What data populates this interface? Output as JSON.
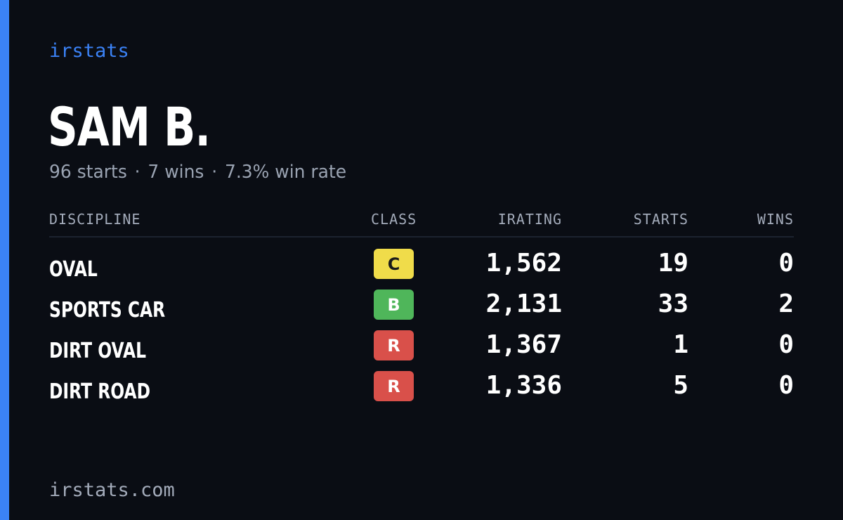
{
  "brand": "irstats",
  "player": {
    "name": "SAM B.",
    "starts_text": "96 starts",
    "wins_text": "7 wins",
    "win_rate_text": "7.3% win rate",
    "separator": "·"
  },
  "table": {
    "headers": {
      "discipline": "DISCIPLINE",
      "class": "CLASS",
      "irating": "IRATING",
      "starts": "STARTS",
      "wins": "WINS"
    },
    "rows": [
      {
        "discipline": "OVAL",
        "class": "C",
        "class_color": "#f0dc4a",
        "class_text_color": "#1a1a1a",
        "irating": "1,562",
        "starts": "19",
        "wins": "0"
      },
      {
        "discipline": "SPORTS CAR",
        "class": "B",
        "class_color": "#4fb65a",
        "class_text_color": "#ffffff",
        "irating": "2,131",
        "starts": "33",
        "wins": "2"
      },
      {
        "discipline": "DIRT OVAL",
        "class": "R",
        "class_color": "#d9504a",
        "class_text_color": "#ffffff",
        "irating": "1,367",
        "starts": "1",
        "wins": "0"
      },
      {
        "discipline": "DIRT ROAD",
        "class": "R",
        "class_color": "#d9504a",
        "class_text_color": "#ffffff",
        "irating": "1,336",
        "starts": "5",
        "wins": "0"
      }
    ]
  },
  "footer": "irstats.com",
  "colors": {
    "background": "#0a0d14",
    "accent": "#3b82f6",
    "muted": "#9aa3b2"
  }
}
